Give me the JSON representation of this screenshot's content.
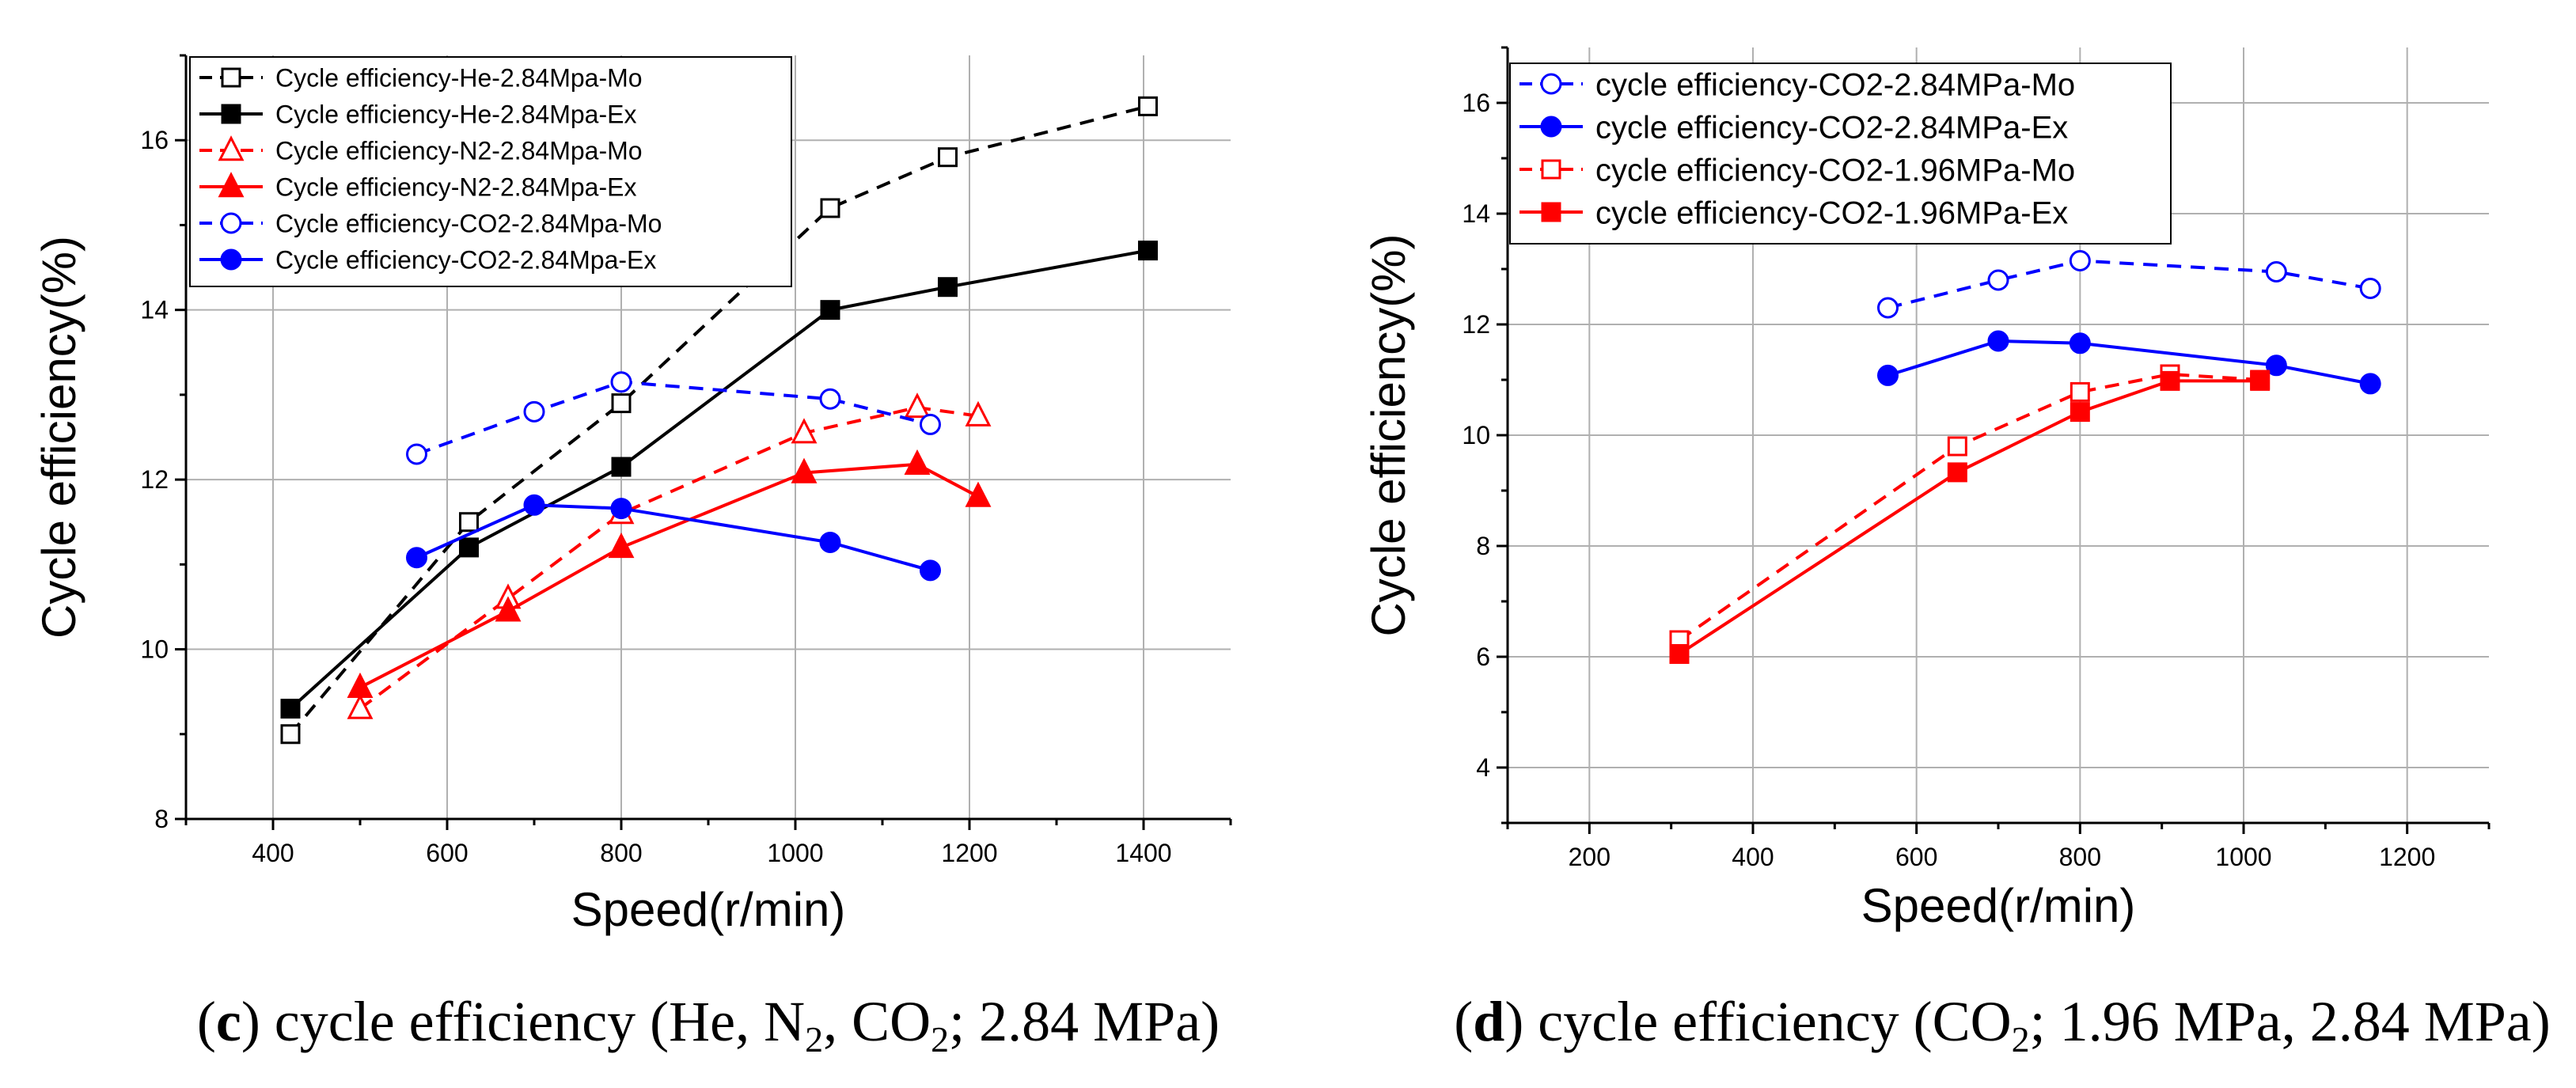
{
  "chart_data": [
    {
      "id": "c",
      "type": "line",
      "xlabel": "Speed(r/min)",
      "ylabel": "Cycle efficiency(%)",
      "xlim": [
        300,
        1500
      ],
      "ylim": [
        8,
        17
      ],
      "xticks": [
        400,
        600,
        800,
        1000,
        1200,
        1400
      ],
      "yticks": [
        8,
        10,
        12,
        14,
        16
      ],
      "grid": true,
      "legend_position": "top-left",
      "caption": {
        "letter": "c",
        "text_parts": [
          "(",
          "c",
          ") cycle efficiency (He, N",
          "2",
          ", CO",
          "2",
          "; 2.84 MPa)"
        ]
      },
      "series": [
        {
          "name": "Cycle efficiency-He-2.84Mpa-Mo",
          "color": "#000000",
          "dashed": true,
          "marker": "square-open",
          "x": [
            420,
            625,
            800,
            1040,
            1175,
            1405
          ],
          "y": [
            9.0,
            11.5,
            12.9,
            15.2,
            15.8,
            16.4
          ]
        },
        {
          "name": "Cycle efficiency-He-2.84Mpa-Ex",
          "color": "#000000",
          "dashed": false,
          "marker": "square-filled",
          "x": [
            420,
            625,
            800,
            1040,
            1175,
            1405
          ],
          "y": [
            9.3,
            11.2,
            12.15,
            14.0,
            14.27,
            14.7
          ]
        },
        {
          "name": "Cycle efficiency-N2-2.84Mpa-Mo",
          "color": "#ff0000",
          "dashed": true,
          "marker": "triangle-open",
          "x": [
            500,
            670,
            800,
            1010,
            1140,
            1210
          ],
          "y": [
            9.3,
            10.6,
            11.6,
            12.55,
            12.85,
            12.75
          ]
        },
        {
          "name": "Cycle efficiency-N2-2.84Mpa-Ex",
          "color": "#ff0000",
          "dashed": false,
          "marker": "triangle-filled",
          "x": [
            500,
            670,
            800,
            1010,
            1140,
            1210
          ],
          "y": [
            9.55,
            10.45,
            11.2,
            12.08,
            12.18,
            11.8
          ]
        },
        {
          "name": "Cycle efficiency-CO2-2.84Mpa-Mo",
          "color": "#0000ff",
          "dashed": true,
          "marker": "circle-open",
          "x": [
            565,
            700,
            800,
            1040,
            1155
          ],
          "y": [
            12.3,
            12.8,
            13.15,
            12.95,
            12.65
          ]
        },
        {
          "name": "Cycle efficiency-CO2-2.84Mpa-Ex",
          "color": "#0000ff",
          "dashed": false,
          "marker": "circle-filled",
          "x": [
            565,
            700,
            800,
            1040,
            1155
          ],
          "y": [
            11.08,
            11.7,
            11.66,
            11.26,
            10.93
          ]
        }
      ]
    },
    {
      "id": "d",
      "type": "line",
      "xlabel": "Speed(r/min)",
      "ylabel": "Cycle efficiency(%)",
      "xlim": [
        100,
        1300
      ],
      "ylim": [
        3,
        17
      ],
      "xticks": [
        200,
        400,
        600,
        800,
        1000,
        1200
      ],
      "yticks": [
        4,
        6,
        8,
        10,
        12,
        14,
        16
      ],
      "grid": true,
      "legend_position": "top-left",
      "caption": {
        "letter": "d",
        "text_parts": [
          "(",
          "d",
          ") cycle efficiency (CO",
          "2",
          "; 1.96 MPa, 2.84 MPa)"
        ]
      },
      "series": [
        {
          "name": "cycle efficiency-CO2-2.84MPa-Mo",
          "color": "#0000ff",
          "dashed": true,
          "marker": "circle-open",
          "x": [
            565,
            700,
            800,
            1040,
            1155
          ],
          "y": [
            12.3,
            12.8,
            13.15,
            12.95,
            12.65
          ]
        },
        {
          "name": "cycle efficiency-CO2-2.84MPa-Ex",
          "color": "#0000ff",
          "dashed": false,
          "marker": "circle-filled",
          "x": [
            565,
            700,
            800,
            1040,
            1155
          ],
          "y": [
            11.08,
            11.7,
            11.66,
            11.26,
            10.93
          ]
        },
        {
          "name": "cycle efficiency-CO2-1.96MPa-Mo",
          "color": "#ff0000",
          "dashed": true,
          "marker": "square-open",
          "x": [
            310,
            650,
            800,
            910,
            1020
          ],
          "y": [
            6.3,
            9.8,
            10.78,
            11.1,
            11.0
          ]
        },
        {
          "name": "cycle efficiency-CO2-1.96MPa-Ex",
          "color": "#ff0000",
          "dashed": false,
          "marker": "square-filled",
          "x": [
            310,
            650,
            800,
            910,
            1020
          ],
          "y": [
            6.05,
            9.33,
            10.42,
            10.98,
            10.98
          ]
        }
      ]
    }
  ]
}
